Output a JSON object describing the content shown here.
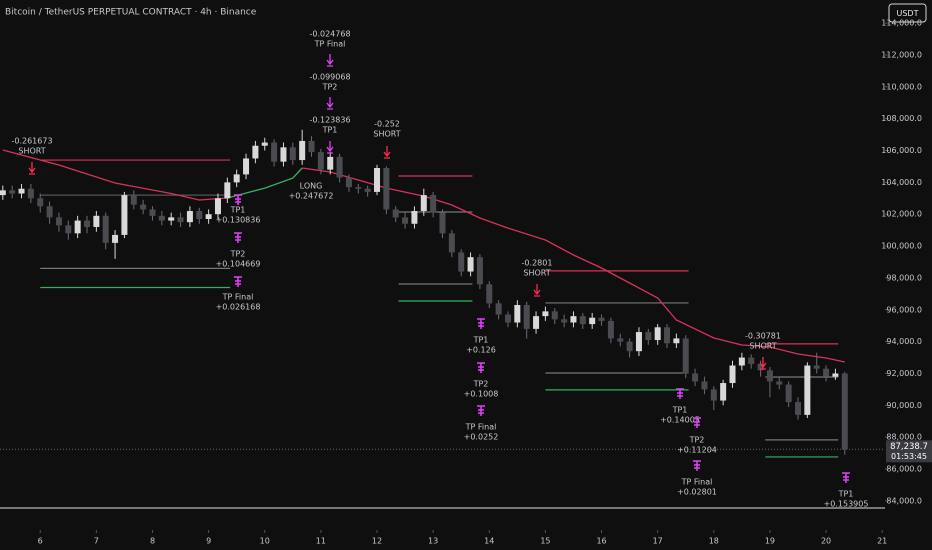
{
  "chart_data": {
    "type": "candlestick",
    "title": "Bitcoin / TetherUS PERPETUAL CONTRACT · 4h · Binance",
    "currency_button": "USDT",
    "up_color": "#d9d9d9",
    "down_color": "#4a4c52",
    "open": [
      103200,
      103500,
      103300,
      103600,
      103000,
      102500,
      101800,
      101300,
      100800,
      101600,
      101200,
      101900,
      100200,
      100700,
      103200,
      102600,
      102300,
      101900,
      101600,
      101800,
      101500,
      102200,
      101700,
      102000,
      103000,
      104000,
      104500,
      105500,
      106300,
      106500,
      105300,
      106200,
      105400,
      106600,
      105900,
      104800,
      105600,
      104300,
      103700,
      103600,
      103400,
      104900,
      102300,
      101800,
      101400,
      102200,
      103200,
      102100,
      100800,
      99600,
      98400,
      99300,
      97600,
      96400,
      95700,
      95200,
      96300,
      94800,
      95600,
      95900,
      95400,
      95200,
      95600,
      95100,
      95500,
      95300,
      94200,
      94000,
      93400,
      94600,
      94100,
      94900,
      93900,
      94200,
      92000,
      91500,
      91000,
      90300,
      91400,
      92500,
      93000,
      92600,
      92200,
      91500,
      91300,
      90200,
      89400,
      92500,
      92300,
      91800,
      92000
    ],
    "high": [
      103800,
      103800,
      103900,
      103900,
      103300,
      102800,
      102100,
      101600,
      101900,
      101900,
      102200,
      102100,
      101000,
      103400,
      103500,
      102900,
      102500,
      102200,
      102100,
      102100,
      102500,
      102400,
      102300,
      103300,
      104300,
      104800,
      105800,
      106600,
      106800,
      106700,
      106500,
      106500,
      107300,
      106900,
      106100,
      105900,
      105800,
      104500,
      103900,
      103800,
      105100,
      105000,
      102500,
      102100,
      102500,
      103600,
      103400,
      102300,
      101000,
      99800,
      99600,
      99500,
      97800,
      96600,
      95900,
      96600,
      96500,
      95900,
      96200,
      96100,
      95700,
      95900,
      95800,
      95800,
      95700,
      95500,
      94500,
      94200,
      94900,
      94800,
      95100,
      95100,
      94500,
      94400,
      92300,
      91800,
      91200,
      91600,
      92800,
      93300,
      93200,
      92800,
      92400,
      91800,
      91500,
      90500,
      92700,
      93300,
      92500,
      92300,
      92100
    ],
    "low": [
      102900,
      103000,
      103000,
      102700,
      102100,
      101400,
      100900,
      100400,
      100500,
      100800,
      100900,
      99800,
      99200,
      100500,
      102300,
      102000,
      101600,
      101300,
      101300,
      101200,
      101200,
      101400,
      101400,
      101700,
      102700,
      103700,
      104200,
      105200,
      106000,
      105000,
      105000,
      105100,
      105100,
      105600,
      104500,
      104500,
      104000,
      103400,
      103300,
      103100,
      103200,
      102000,
      101500,
      101100,
      101100,
      101900,
      101800,
      100500,
      99300,
      98100,
      98100,
      97300,
      96100,
      95400,
      94900,
      94900,
      94200,
      94500,
      95300,
      95100,
      94900,
      94900,
      94800,
      94800,
      95000,
      93900,
      93700,
      93000,
      93100,
      93800,
      93800,
      93600,
      93600,
      91700,
      91200,
      90700,
      89700,
      90000,
      91100,
      92200,
      92300,
      91800,
      90500,
      91000,
      89900,
      89100,
      89200,
      92000,
      91500,
      91600,
      86900
    ],
    "close": [
      103500,
      103300,
      103600,
      103000,
      102500,
      101800,
      101300,
      100800,
      101600,
      101200,
      101900,
      100200,
      100700,
      103200,
      102600,
      102300,
      101900,
      101600,
      101800,
      101500,
      102200,
      101700,
      102000,
      103000,
      104000,
      104500,
      105500,
      106300,
      106500,
      105300,
      106200,
      105400,
      106600,
      105900,
      104800,
      105600,
      104300,
      103700,
      103600,
      103400,
      104900,
      102300,
      101800,
      101400,
      102200,
      103200,
      102100,
      100800,
      99600,
      98400,
      99300,
      97600,
      96400,
      95700,
      95200,
      96300,
      94800,
      95600,
      95900,
      95400,
      95200,
      95600,
      95100,
      95500,
      95300,
      94200,
      94000,
      93400,
      94600,
      94100,
      94900,
      93900,
      94200,
      92000,
      91500,
      91000,
      90300,
      91400,
      92500,
      93000,
      92600,
      92200,
      91500,
      91300,
      90200,
      89400,
      92500,
      92300,
      91800,
      92000,
      87238.7
    ],
    "series": [
      {
        "color": "#d8325a",
        "x": [
          0,
          6,
          12,
          18,
          21,
          24
        ],
        "values": [
          106030,
          105090,
          103960,
          103300,
          102890,
          103020
        ]
      },
      {
        "color": "#2fb361",
        "x": [
          24,
          28,
          31,
          32
        ],
        "values": [
          103020,
          103640,
          104270,
          104900
        ]
      },
      {
        "color": "#d8325a",
        "x": [
          32,
          35,
          38,
          41,
          45,
          48,
          51,
          54,
          58,
          61,
          64,
          67,
          70,
          72,
          76,
          79,
          82,
          85,
          88,
          90
        ],
        "values": [
          104900,
          104650,
          104150,
          103640,
          103140,
          102580,
          101760,
          101130,
          100380,
          99440,
          98620,
          97680,
          96740,
          95360,
          94230,
          93790,
          93660,
          93220,
          92970,
          92720
        ]
      }
    ],
    "levels": [
      {
        "price": 105400,
        "from": 4,
        "to": 24.3,
        "color": "#d8325a"
      },
      {
        "price": 103200,
        "from": 4,
        "to": 24.3,
        "color": "#555555"
      },
      {
        "price": 98600,
        "from": 4,
        "to": 24.3,
        "color": "#777777"
      },
      {
        "price": 97400,
        "from": 4,
        "to": 24.3,
        "color": "#2fb361"
      },
      {
        "price": 104400,
        "from": 42.3,
        "to": 50.2,
        "color": "#d8325a"
      },
      {
        "price": 102140,
        "from": 42.3,
        "to": 50.2,
        "color": "#777777"
      },
      {
        "price": 97620,
        "from": 42.3,
        "to": 50.2,
        "color": "#777777"
      },
      {
        "price": 96550,
        "from": 42.3,
        "to": 50.2,
        "color": "#2fb361"
      },
      {
        "price": 98440,
        "from": 58,
        "to": 73.3,
        "color": "#d8325a"
      },
      {
        "price": 96430,
        "from": 58,
        "to": 73.3,
        "color": "#777777"
      },
      {
        "price": 92030,
        "from": 58,
        "to": 73.3,
        "color": "#777777"
      },
      {
        "price": 90970,
        "from": 58,
        "to": 73.3,
        "color": "#2fb361"
      },
      {
        "price": 93860,
        "from": 81.5,
        "to": 89.3,
        "color": "#d8325a"
      },
      {
        "price": 91780,
        "from": 81.5,
        "to": 89.3,
        "color": "#777777"
      },
      {
        "price": 87830,
        "from": 81.5,
        "to": 89.3,
        "color": "#777777"
      },
      {
        "price": 86760,
        "from": 81.5,
        "to": 89.3,
        "color": "#2fb361"
      }
    ],
    "annotations": [
      {
        "text": [
          "-0.261673",
          "SHORT"
        ]
      },
      {
        "text": [
          "-0.024768",
          "TP Final"
        ]
      },
      {
        "text": [
          "-0.099068",
          "TP2"
        ]
      },
      {
        "text": [
          "-0.123836",
          "TP1"
        ]
      },
      {
        "text": [
          "-0.252",
          "SHORT"
        ]
      },
      {
        "text": [
          "LONG",
          "+0.247672"
        ]
      },
      {
        "text": [
          "TP1",
          "+0.130836"
        ]
      },
      {
        "text": [
          "TP2",
          "+0.104669"
        ]
      },
      {
        "text": [
          "TP Final",
          "+0.026168"
        ]
      },
      {
        "text": [
          "-0.2801",
          "SHORT"
        ]
      },
      {
        "text": [
          "TP1",
          "+0.126"
        ]
      },
      {
        "text": [
          "TP2",
          "+0.1008"
        ]
      },
      {
        "text": [
          "TP Final",
          "+0.0252"
        ]
      },
      {
        "text": [
          "-0.30781",
          "SHORT"
        ]
      },
      {
        "text": [
          "TP1",
          "+0.14005"
        ]
      },
      {
        "text": [
          "TP2",
          "+0.11204"
        ]
      },
      {
        "text": [
          "TP Final",
          "+0.02801"
        ]
      },
      {
        "text": [
          "TP1",
          "+0.153905"
        ]
      }
    ],
    "last_price": {
      "value": 87238.7,
      "label": "87,238.7",
      "countdown": "01:53:45"
    },
    "xlim": [
      -0.3,
      94.3
    ],
    "xticks": [
      {
        "value": 4,
        "label": "6"
      },
      {
        "value": 10,
        "label": "7"
      },
      {
        "value": 16,
        "label": "8"
      },
      {
        "value": 22,
        "label": "9"
      },
      {
        "value": 28,
        "label": "10"
      },
      {
        "value": 34,
        "label": "11"
      },
      {
        "value": 40,
        "label": "12"
      },
      {
        "value": 46,
        "label": "13"
      },
      {
        "value": 52,
        "label": "14"
      },
      {
        "value": 58,
        "label": "15"
      },
      {
        "value": 64,
        "label": "16"
      },
      {
        "value": 70,
        "label": "17"
      },
      {
        "value": 76,
        "label": "18"
      },
      {
        "value": 82,
        "label": "19"
      },
      {
        "value": 88,
        "label": "20"
      },
      {
        "value": 94,
        "label": "21"
      }
    ],
    "ylim": [
      82800,
      115450
    ],
    "yticks": [
      {
        "value": 84000,
        "label": "84,000.0"
      },
      {
        "value": 86000,
        "label": "86,000.0"
      },
      {
        "value": 88000,
        "label": "88,000.0"
      },
      {
        "value": 90000,
        "label": "90,000.0"
      },
      {
        "value": 92000,
        "label": "92,000.0"
      },
      {
        "value": 94000,
        "label": "94,000.0"
      },
      {
        "value": 96000,
        "label": "96,000.0"
      },
      {
        "value": 98000,
        "label": "98,000.0"
      },
      {
        "value": 100000,
        "label": "100,000.0"
      },
      {
        "value": 102000,
        "label": "102,000.0"
      },
      {
        "value": 104000,
        "label": "104,000.0"
      },
      {
        "value": 106000,
        "label": "106,000.0"
      },
      {
        "value": 108000,
        "label": "108,000.0"
      },
      {
        "value": 110000,
        "label": "110,000.0"
      },
      {
        "value": 112000,
        "label": "112,000.0"
      },
      {
        "value": 114000,
        "label": "114,000.0"
      }
    ]
  }
}
